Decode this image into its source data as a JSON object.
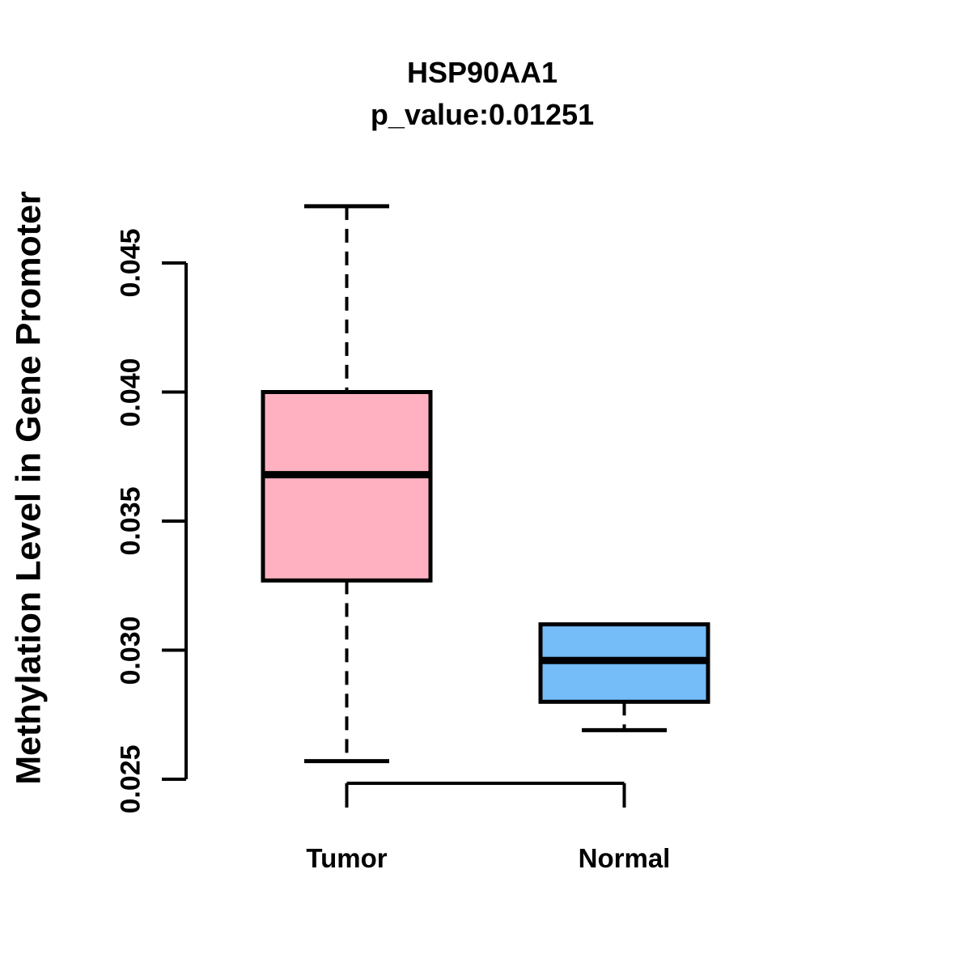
{
  "chart_data": {
    "type": "boxplot",
    "title": "HSP90AA1",
    "subtitle": "p_value:0.01251",
    "p_value": 0.01251,
    "ylabel": "Methylation Level in Gene Promoter",
    "xlabel": "",
    "categories": [
      "Tumor",
      "Normal"
    ],
    "groups": [
      {
        "label": "Tumor",
        "color": "#FFB1C1",
        "whisker_low": 0.0257,
        "q1": 0.0327,
        "median": 0.0368,
        "q3": 0.04,
        "whisker_high": 0.0472
      },
      {
        "label": "Normal",
        "color": "#74BDF8",
        "whisker_low": 0.0269,
        "q1": 0.028,
        "median": 0.0296,
        "q3": 0.031,
        "whisker_high": 0.031
      }
    ],
    "y_ticks": [
      0.025,
      0.03,
      0.035,
      0.04,
      0.045
    ],
    "y_tick_labels": [
      "0.025",
      "0.030",
      "0.035",
      "0.040",
      "0.045"
    ],
    "ylim": [
      0.025,
      0.045
    ],
    "grid": false,
    "legend": "none",
    "line_color": "#000000",
    "background_color": "#FFFFFF"
  }
}
